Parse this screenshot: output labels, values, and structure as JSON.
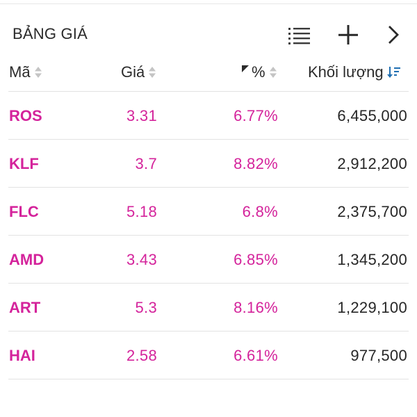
{
  "header": {
    "title": "BẢNG GIÁ",
    "icons": {
      "list": "list-icon",
      "add": "plus-icon",
      "next": "chevron-right-icon"
    }
  },
  "columns": {
    "symbol": "Mã",
    "price": "Giá",
    "change_pct": "%",
    "volume": "Khối lượng"
  },
  "sort": {
    "active_column": "volume",
    "direction": "descending"
  },
  "colors": {
    "up": "#d4239b",
    "text": "#262626",
    "sort_active": "#1f6fb2",
    "sort_inactive": "#c4c4c4",
    "divider": "#e2e2e2"
  },
  "rows": [
    {
      "symbol": "ROS",
      "price": "3.31",
      "change_pct": "6.77%",
      "volume": "6,455,000"
    },
    {
      "symbol": "KLF",
      "price": "3.7",
      "change_pct": "8.82%",
      "volume": "2,912,200"
    },
    {
      "symbol": "FLC",
      "price": "5.18",
      "change_pct": "6.8%",
      "volume": "2,375,700"
    },
    {
      "symbol": "AMD",
      "price": "3.43",
      "change_pct": "6.85%",
      "volume": "1,345,200"
    },
    {
      "symbol": "ART",
      "price": "5.3",
      "change_pct": "8.16%",
      "volume": "1,229,100"
    },
    {
      "symbol": "HAI",
      "price": "2.58",
      "change_pct": "6.61%",
      "volume": "977,500"
    }
  ]
}
